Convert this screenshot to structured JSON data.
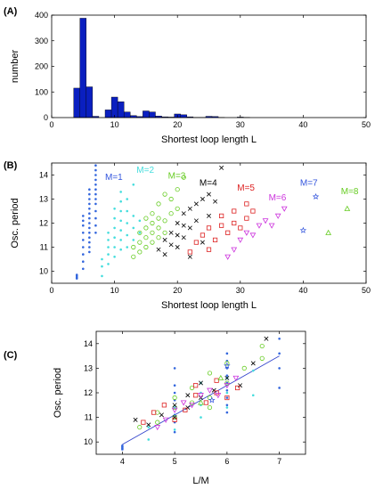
{
  "chart_data": [
    {
      "panel": "(A)",
      "type": "bar",
      "xlabel": "Shortest loop length L",
      "ylabel": "number",
      "xlim": [
        0,
        50
      ],
      "ylim": [
        0,
        400
      ],
      "xticks": [
        0,
        10,
        20,
        30,
        40,
        50
      ],
      "yticks": [
        0,
        100,
        200,
        300,
        400
      ],
      "grid": false,
      "bar_color": "#0a1fc0",
      "bin_width": 1,
      "bins": [
        {
          "x": 4,
          "count": 115
        },
        {
          "x": 5,
          "count": 388
        },
        {
          "x": 6,
          "count": 120
        },
        {
          "x": 7,
          "count": 5
        },
        {
          "x": 8,
          "count": 0
        },
        {
          "x": 9,
          "count": 30
        },
        {
          "x": 10,
          "count": 80
        },
        {
          "x": 11,
          "count": 62
        },
        {
          "x": 12,
          "count": 22
        },
        {
          "x": 13,
          "count": 8
        },
        {
          "x": 14,
          "count": 4
        },
        {
          "x": 15,
          "count": 26
        },
        {
          "x": 16,
          "count": 22
        },
        {
          "x": 17,
          "count": 6
        },
        {
          "x": 18,
          "count": 3
        },
        {
          "x": 19,
          "count": 2
        },
        {
          "x": 20,
          "count": 14
        },
        {
          "x": 21,
          "count": 11
        },
        {
          "x": 22,
          "count": 3
        },
        {
          "x": 23,
          "count": 1
        },
        {
          "x": 24,
          "count": 1
        },
        {
          "x": 25,
          "count": 5
        },
        {
          "x": 26,
          "count": 4
        },
        {
          "x": 27,
          "count": 1
        },
        {
          "x": 30,
          "count": 2
        },
        {
          "x": 31,
          "count": 1
        }
      ]
    },
    {
      "panel": "(B)",
      "type": "scatter",
      "xlabel": "Shortest loop length L",
      "ylabel": "Osc. period",
      "xlim": [
        0,
        50
      ],
      "ylim": [
        9.5,
        14.5
      ],
      "xticks": [
        0,
        10,
        20,
        30,
        40,
        50
      ],
      "yticks": [
        10,
        11,
        12,
        13,
        14
      ],
      "grid": false,
      "annotations": [
        {
          "text": "M=1",
          "x": 8.5,
          "y": 13.8,
          "color": "#3355dd"
        },
        {
          "text": "M=2",
          "x": 13.5,
          "y": 14.1,
          "color": "#44dddd"
        },
        {
          "text": "M=3",
          "x": 18.5,
          "y": 13.85,
          "color": "#66cc22"
        },
        {
          "text": "M=4",
          "x": 23.5,
          "y": 13.55,
          "color": "#000000"
        },
        {
          "text": "M=5",
          "x": 29.5,
          "y": 13.35,
          "color": "#dd2222"
        },
        {
          "text": "M=6",
          "x": 34.5,
          "y": 12.95,
          "color": "#cc33dd"
        },
        {
          "text": "M=7",
          "x": 39.5,
          "y": 13.55,
          "color": "#3355dd"
        },
        {
          "text": "M=8",
          "x": 46.0,
          "y": 13.2,
          "color": "#66cc22"
        }
      ],
      "series": [
        {
          "group": "M=1",
          "marker": "dot",
          "color": "#3366dd",
          "x": [
            4,
            4,
            4,
            4,
            5,
            5,
            5,
            5,
            5,
            5,
            5,
            5,
            5,
            6,
            6,
            6,
            6,
            6,
            6,
            6,
            6,
            6,
            6,
            6,
            6,
            6,
            6,
            7,
            7,
            7,
            7,
            7,
            7,
            7,
            7,
            7,
            7,
            7,
            7,
            7
          ],
          "y": [
            9.7,
            9.75,
            9.8,
            9.85,
            10.1,
            10.4,
            10.7,
            11.0,
            11.3,
            11.6,
            11.9,
            12.1,
            12.3,
            10.8,
            11.0,
            11.2,
            11.4,
            11.6,
            11.8,
            12.0,
            12.2,
            12.4,
            12.6,
            12.8,
            13.0,
            13.2,
            13.4,
            11.6,
            11.9,
            12.2,
            12.5,
            12.8,
            13.0,
            13.2,
            13.4,
            13.6,
            13.8,
            14.0,
            14.2,
            14.4
          ]
        },
        {
          "group": "M=2",
          "marker": "dot",
          "color": "#44dddd",
          "x": [
            8,
            8,
            8,
            9,
            9,
            9,
            9,
            9,
            10,
            10,
            10,
            10,
            10,
            10,
            11,
            11,
            11,
            11,
            11,
            11,
            11,
            12,
            12,
            12,
            12,
            12,
            13,
            13,
            13,
            13,
            14,
            14
          ],
          "y": [
            9.8,
            10.2,
            10.5,
            10.3,
            10.7,
            11.0,
            11.3,
            11.6,
            10.6,
            11.0,
            11.4,
            11.8,
            12.2,
            12.6,
            10.9,
            11.3,
            11.7,
            12.1,
            12.5,
            12.9,
            13.3,
            11.0,
            11.5,
            12.0,
            12.5,
            13.0,
            11.3,
            11.8,
            12.3,
            13.6,
            11.6,
            12.1
          ]
        },
        {
          "group": "M=3",
          "marker": "circle",
          "color": "#66cc22",
          "x": [
            13,
            13,
            14,
            14,
            14,
            15,
            15,
            15,
            15,
            16,
            16,
            16,
            16,
            17,
            17,
            17,
            17,
            18,
            18,
            18,
            19,
            19,
            20,
            20,
            21
          ],
          "y": [
            10.6,
            11.0,
            10.8,
            11.2,
            11.6,
            11.0,
            11.4,
            11.8,
            12.2,
            11.2,
            11.6,
            12.0,
            12.4,
            11.4,
            11.8,
            12.2,
            12.8,
            11.6,
            12.1,
            13.2,
            12.4,
            13.0,
            12.6,
            13.4,
            13.9
          ]
        },
        {
          "group": "M=4",
          "marker": "x",
          "color": "#000000",
          "x": [
            17,
            18,
            18,
            19,
            19,
            20,
            20,
            20,
            21,
            21,
            21,
            22,
            22,
            22,
            23,
            23,
            24,
            24,
            25,
            25,
            26,
            27
          ],
          "y": [
            10.9,
            10.7,
            11.3,
            11.1,
            11.6,
            11.0,
            11.5,
            12.0,
            11.4,
            11.9,
            12.4,
            10.6,
            11.8,
            12.6,
            12.1,
            12.8,
            11.2,
            13.0,
            12.3,
            13.2,
            12.9,
            14.3
          ]
        },
        {
          "group": "M=5",
          "marker": "square",
          "color": "#dd2222",
          "x": [
            22,
            23,
            24,
            25,
            25,
            26,
            27,
            27,
            28,
            29,
            29,
            30,
            31,
            31,
            32
          ],
          "y": [
            10.8,
            11.2,
            11.5,
            10.9,
            11.8,
            11.3,
            11.9,
            12.3,
            11.6,
            12.0,
            12.5,
            11.8,
            12.2,
            12.8,
            12.5
          ]
        },
        {
          "group": "M=6",
          "marker": "triangle-down",
          "color": "#cc33dd",
          "x": [
            28,
            29,
            30,
            31,
            32,
            33,
            34,
            35,
            36,
            37
          ],
          "y": [
            10.6,
            10.9,
            11.3,
            11.6,
            11.5,
            11.9,
            12.1,
            11.9,
            12.3,
            12.6
          ]
        },
        {
          "group": "M=7",
          "marker": "star",
          "color": "#3355dd",
          "x": [
            40,
            42
          ],
          "y": [
            11.7,
            13.1
          ]
        },
        {
          "group": "M=8",
          "marker": "triangle-up",
          "color": "#66cc22",
          "x": [
            44,
            47
          ],
          "y": [
            11.6,
            12.6
          ]
        }
      ]
    },
    {
      "panel": "(C)",
      "type": "scatter",
      "xlabel": "L/M",
      "ylabel": "Osc. period",
      "xlim": [
        3.5,
        7.5
      ],
      "ylim": [
        9.5,
        14.5
      ],
      "xticks": [
        4,
        5,
        6,
        7
      ],
      "yticks": [
        10,
        11,
        12,
        13,
        14
      ],
      "grid": false,
      "fit_line": {
        "x": [
          4,
          7
        ],
        "y": [
          9.9,
          13.5
        ],
        "color": "#3344cc"
      },
      "series": [
        {
          "group": "M=1",
          "marker": "dot",
          "color": "#3366dd",
          "x": [
            4,
            4,
            4,
            4,
            5,
            5,
            5,
            5,
            5,
            5,
            5,
            5,
            6,
            6,
            6,
            6,
            6,
            6,
            6,
            6,
            6,
            6,
            7,
            7,
            7,
            7
          ],
          "y": [
            9.7,
            9.75,
            9.8,
            9.85,
            10.4,
            10.8,
            11.1,
            11.4,
            11.7,
            12.0,
            12.3,
            13.0,
            11.2,
            11.5,
            11.8,
            12.1,
            12.4,
            12.7,
            13.0,
            13.3,
            13.6,
            12.6,
            12.2,
            13.0,
            13.6,
            14.2
          ]
        },
        {
          "group": "M=2",
          "marker": "dot",
          "color": "#44dddd",
          "x": [
            4.5,
            4.5,
            5,
            5,
            5,
            5.5,
            5.5,
            5.5,
            5.5,
            6,
            6,
            6,
            6.5,
            6.5
          ],
          "y": [
            10.1,
            10.6,
            10.5,
            11.0,
            11.4,
            11.0,
            11.5,
            12.0,
            12.4,
            11.4,
            12.0,
            12.6,
            11.9,
            12.9
          ]
        },
        {
          "group": "M=3",
          "marker": "circle",
          "color": "#66cc22",
          "x": [
            4.33,
            4.67,
            4.67,
            5,
            5,
            5,
            5.33,
            5.33,
            5.67,
            5.67,
            5.67,
            6,
            6,
            6.33,
            6.67,
            6.67
          ],
          "y": [
            10.6,
            10.8,
            11.2,
            11.0,
            11.4,
            11.8,
            11.6,
            12.2,
            11.4,
            11.8,
            12.8,
            12.4,
            13.2,
            13.0,
            13.4,
            13.9
          ]
        },
        {
          "group": "M=4",
          "marker": "x",
          "color": "#000000",
          "x": [
            4.25,
            4.5,
            4.75,
            5,
            5,
            5.25,
            5.25,
            5.5,
            5.5,
            5.75,
            6,
            6.25,
            6.5,
            6.75
          ],
          "y": [
            10.9,
            10.7,
            11.1,
            11.0,
            11.5,
            11.4,
            11.9,
            11.8,
            12.4,
            12.1,
            12.6,
            12.3,
            13.2,
            14.2
          ]
        },
        {
          "group": "M=5",
          "marker": "square",
          "color": "#dd2222",
          "x": [
            4.4,
            4.6,
            4.8,
            5,
            5.2,
            5.4,
            5.4,
            5.6,
            5.8,
            5.8,
            6,
            6.2
          ],
          "y": [
            10.8,
            11.2,
            11.5,
            10.9,
            11.3,
            11.9,
            12.3,
            11.6,
            12.0,
            12.5,
            11.8,
            12.2
          ]
        },
        {
          "group": "M=6",
          "marker": "triangle-down",
          "color": "#cc33dd",
          "x": [
            4.67,
            4.83,
            5,
            5.17,
            5.33,
            5.5,
            5.67,
            5.83,
            6,
            6.17
          ],
          "y": [
            10.6,
            10.9,
            11.3,
            11.6,
            11.5,
            11.9,
            12.1,
            11.9,
            12.3,
            12.6
          ]
        },
        {
          "group": "M=7",
          "marker": "star",
          "color": "#3355dd",
          "x": [
            5.71,
            6.0
          ],
          "y": [
            11.7,
            13.1
          ]
        },
        {
          "group": "M=8",
          "marker": "triangle-up",
          "color": "#66cc22",
          "x": [
            5.5,
            5.88
          ],
          "y": [
            11.6,
            12.6
          ]
        }
      ]
    }
  ]
}
